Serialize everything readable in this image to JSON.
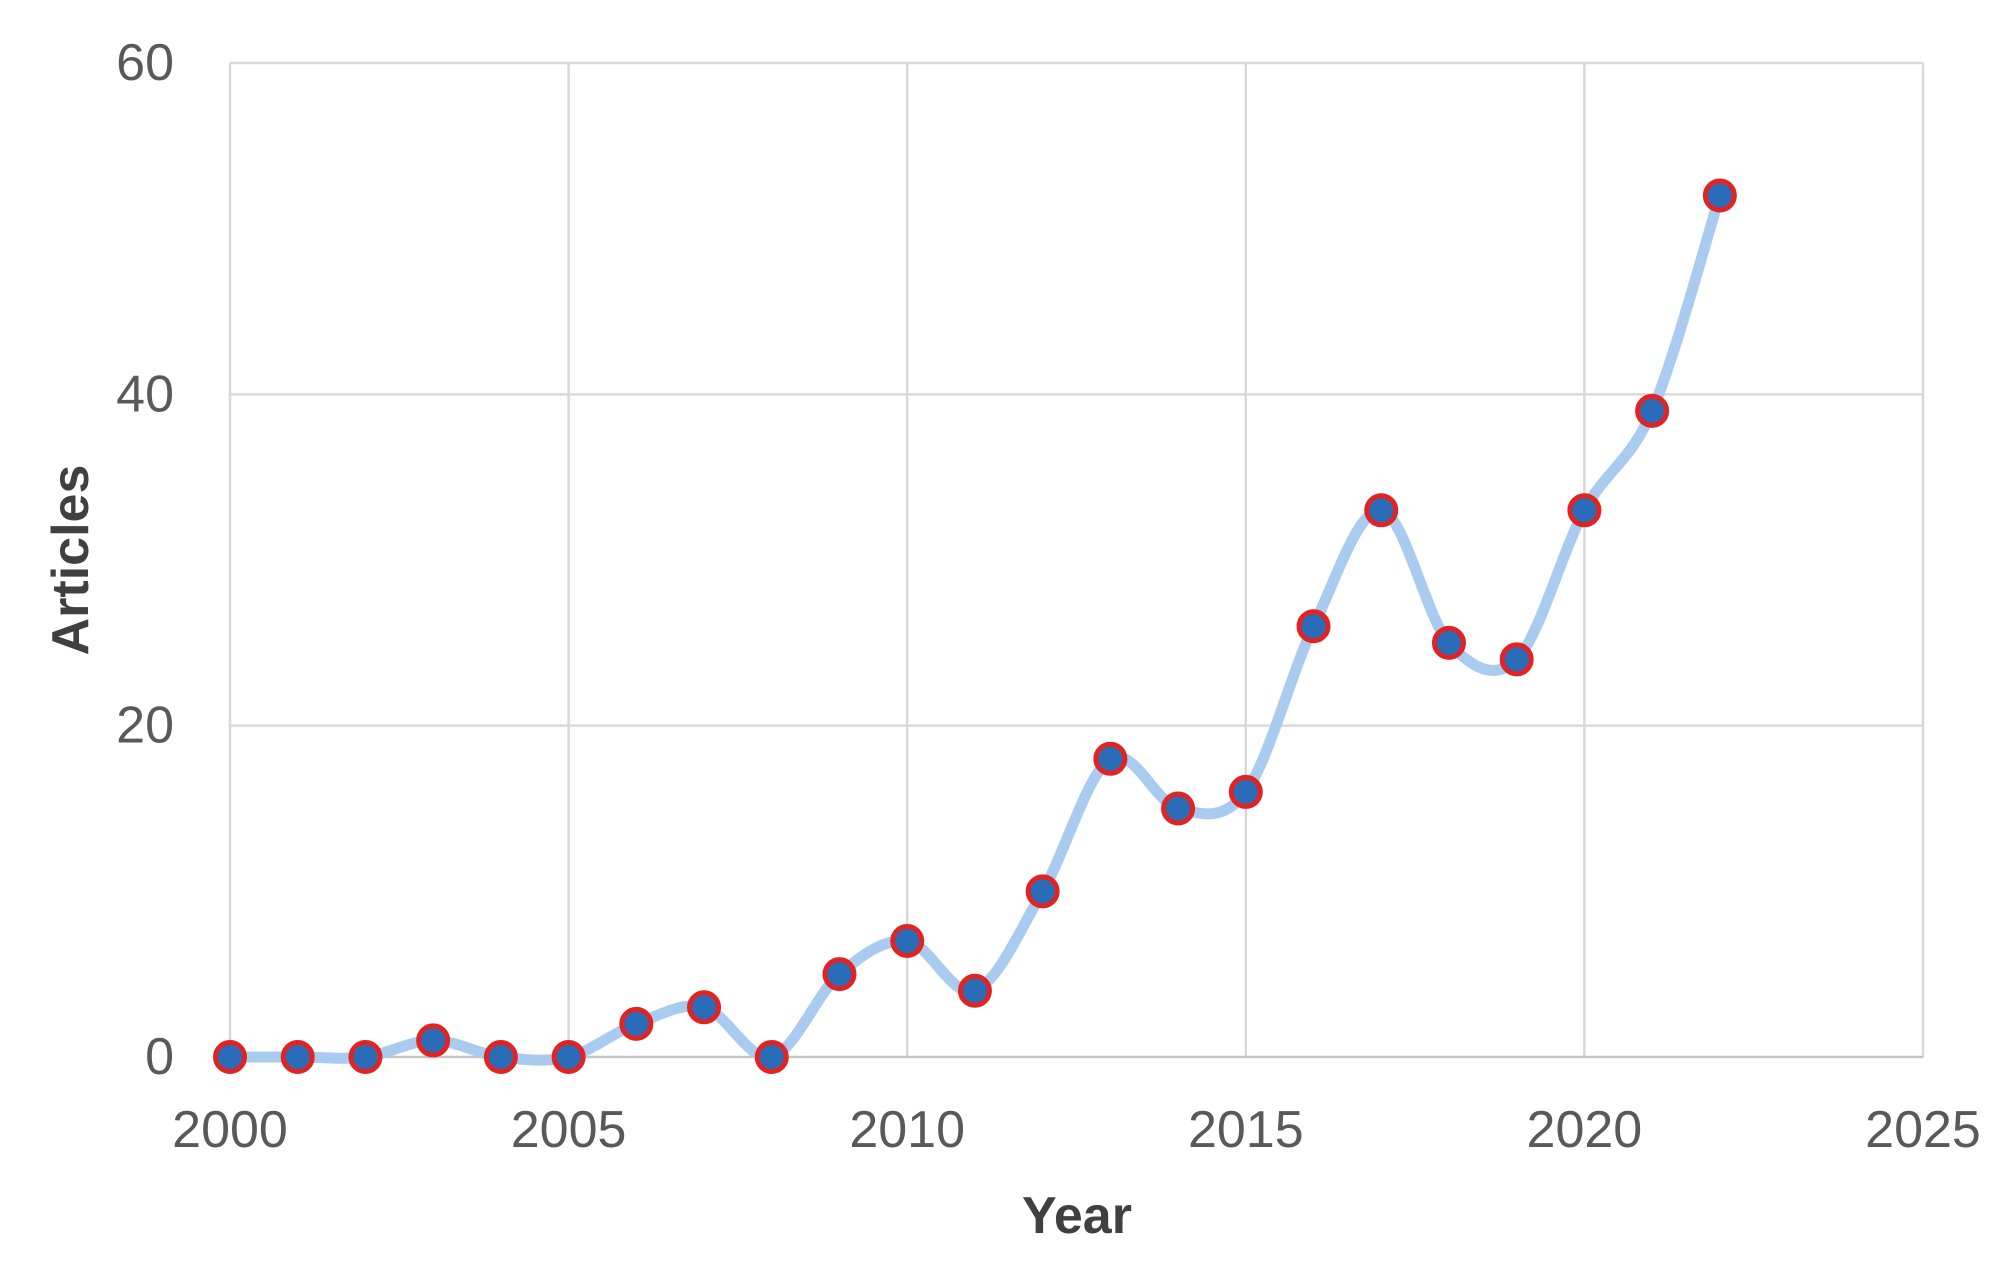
{
  "figure": {
    "background": "#ffffff"
  },
  "chart_data": {
    "type": "line",
    "title": "",
    "xlabel": "Year",
    "ylabel": "Articles",
    "series_name": "Articles",
    "x": [
      2000,
      2001,
      2002,
      2003,
      2004,
      2005,
      2006,
      2007,
      2008,
      2009,
      2010,
      2011,
      2012,
      2013,
      2014,
      2015,
      2016,
      2017,
      2018,
      2019,
      2020,
      2021,
      2022
    ],
    "values": [
      0,
      0,
      0,
      1,
      0,
      0,
      2,
      3,
      0,
      5,
      7,
      4,
      10,
      18,
      15,
      16,
      26,
      33,
      25,
      24,
      33,
      39,
      52
    ],
    "xlim": [
      2000,
      2025
    ],
    "ylim": [
      0,
      60
    ],
    "xticks": [
      2000,
      2005,
      2010,
      2015,
      2020,
      2025
    ],
    "yticks": [
      0,
      20,
      40,
      60
    ],
    "grid": true,
    "legend_position": "none",
    "line_style": "smooth",
    "marker": "circle",
    "line_color": "#A9CBEF",
    "marker_fill": "#2B6CB8",
    "marker_stroke": "#E02424",
    "gridline_color": "#D9D9D9",
    "axis_line_color": "#C6C6C6",
    "tick_label_color": "#595959",
    "axis_title_color": "#404040"
  }
}
